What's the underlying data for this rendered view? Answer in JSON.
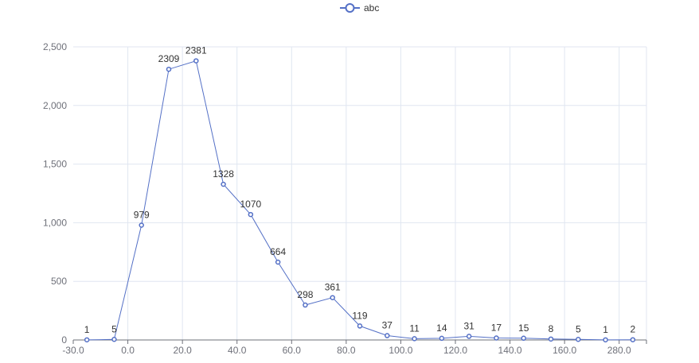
{
  "chart_data": {
    "type": "line",
    "title": "",
    "xlabel": "",
    "ylabel": "",
    "legend": {
      "placement": "top-center",
      "entries": [
        "abc"
      ]
    },
    "grid": true,
    "x_tick_labels": [
      "-30.0",
      "0.0",
      "20.0",
      "40.0",
      "60.0",
      "80.0",
      "100.0",
      "120.0",
      "140.0",
      "160.0",
      "280.0"
    ],
    "y_tick_labels": [
      "0",
      "500",
      "1,000",
      "1,500",
      "2,000",
      "2,500"
    ],
    "ylim": [
      0,
      2500
    ],
    "series": [
      {
        "name": "abc",
        "color": "#5470c6",
        "values": [
          1,
          5,
          979,
          2309,
          2381,
          1328,
          1070,
          664,
          298,
          361,
          119,
          37,
          11,
          14,
          31,
          17,
          15,
          8,
          5,
          1,
          2
        ]
      }
    ]
  }
}
